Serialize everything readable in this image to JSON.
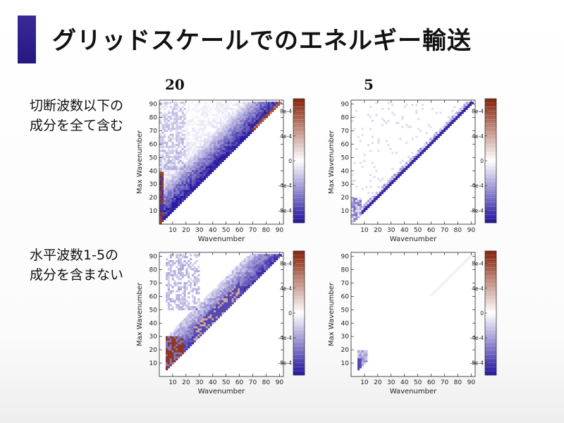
{
  "slide": {
    "title": "グリッドスケールでのエネルギー輸送",
    "accent_color": "#2a1e8a",
    "columns": [
      "20",
      "5"
    ],
    "rows": [
      {
        "label_line1": "切断波数以下の",
        "label_line2": "成分を全て含む"
      },
      {
        "label_line1": "水平波数1-5の",
        "label_line2": "成分を含まない"
      }
    ]
  },
  "chart_data": [
    {
      "type": "heatmap",
      "column": "20",
      "row": 1,
      "pattern": "wide-top",
      "xlabel": "Wavenumber",
      "ylabel": "Max Wavenumber",
      "xticks": [
        "10",
        "20",
        "30",
        "40",
        "50",
        "60",
        "70",
        "80",
        "90"
      ],
      "yticks": [
        "10",
        "20",
        "30",
        "40",
        "50",
        "60",
        "70",
        "80",
        "90"
      ],
      "xlim": [
        0,
        93
      ],
      "ylim": [
        0,
        93
      ],
      "colorbar_ticks": [
        "8e-4",
        "4e-4",
        "0",
        "-4e-4",
        "-8e-4"
      ],
      "colorbar_range": [
        -0.001,
        0.001
      ],
      "colors": {
        "negative": "#2a1aa0",
        "zero": "#ffffff",
        "positive": "#8a2a12"
      }
    },
    {
      "type": "heatmap",
      "column": "5",
      "row": 1,
      "pattern": "diagonal",
      "xlabel": "Wavenumber",
      "ylabel": "Max Wavenumber",
      "xticks": [
        "10",
        "20",
        "30",
        "40",
        "50",
        "60",
        "70",
        "80",
        "90"
      ],
      "yticks": [
        "10",
        "20",
        "30",
        "40",
        "50",
        "60",
        "70",
        "80",
        "90"
      ],
      "xlim": [
        0,
        93
      ],
      "ylim": [
        0,
        93
      ],
      "colorbar_ticks": [
        "8e-4",
        "4e-4",
        "0",
        "-4e-4",
        "-8e-4"
      ],
      "colorbar_range": [
        -0.001,
        0.001
      ],
      "colors": {
        "negative": "#2a1aa0",
        "zero": "#ffffff",
        "positive": "#8a2a12"
      }
    },
    {
      "type": "heatmap",
      "column": "20",
      "row": 2,
      "pattern": "mixed-low",
      "xlabel": "Wavenumber",
      "ylabel": "Max Wavenumber",
      "xticks": [
        "10",
        "20",
        "30",
        "40",
        "50",
        "60",
        "70",
        "80",
        "90"
      ],
      "yticks": [
        "10",
        "20",
        "30",
        "40",
        "50",
        "60",
        "70",
        "80",
        "90"
      ],
      "xlim": [
        0,
        93
      ],
      "ylim": [
        0,
        93
      ],
      "colorbar_ticks": [
        "8e-4",
        "4e-4",
        "0",
        "-4e-4",
        "-8e-4"
      ],
      "colorbar_range": [
        -0.001,
        0.001
      ],
      "colors": {
        "negative": "#2a1aa0",
        "zero": "#ffffff",
        "positive": "#8a2a12"
      }
    },
    {
      "type": "heatmap",
      "column": "5",
      "row": 2,
      "pattern": "faint-corner",
      "xlabel": "Wavenumber",
      "ylabel": "Max Wavenumber",
      "xticks": [
        "10",
        "20",
        "30",
        "40",
        "50",
        "60",
        "70",
        "80",
        "90"
      ],
      "yticks": [
        "10",
        "20",
        "30",
        "40",
        "50",
        "60",
        "70",
        "80",
        "90"
      ],
      "xlim": [
        0,
        93
      ],
      "ylim": [
        0,
        93
      ],
      "colorbar_ticks": [
        "8e-4",
        "4e-4",
        "0",
        "-4e-4",
        "-8e-4"
      ],
      "colorbar_range": [
        -0.001,
        0.001
      ],
      "colors": {
        "negative": "#2a1aa0",
        "zero": "#ffffff",
        "positive": "#8a2a12"
      }
    }
  ]
}
